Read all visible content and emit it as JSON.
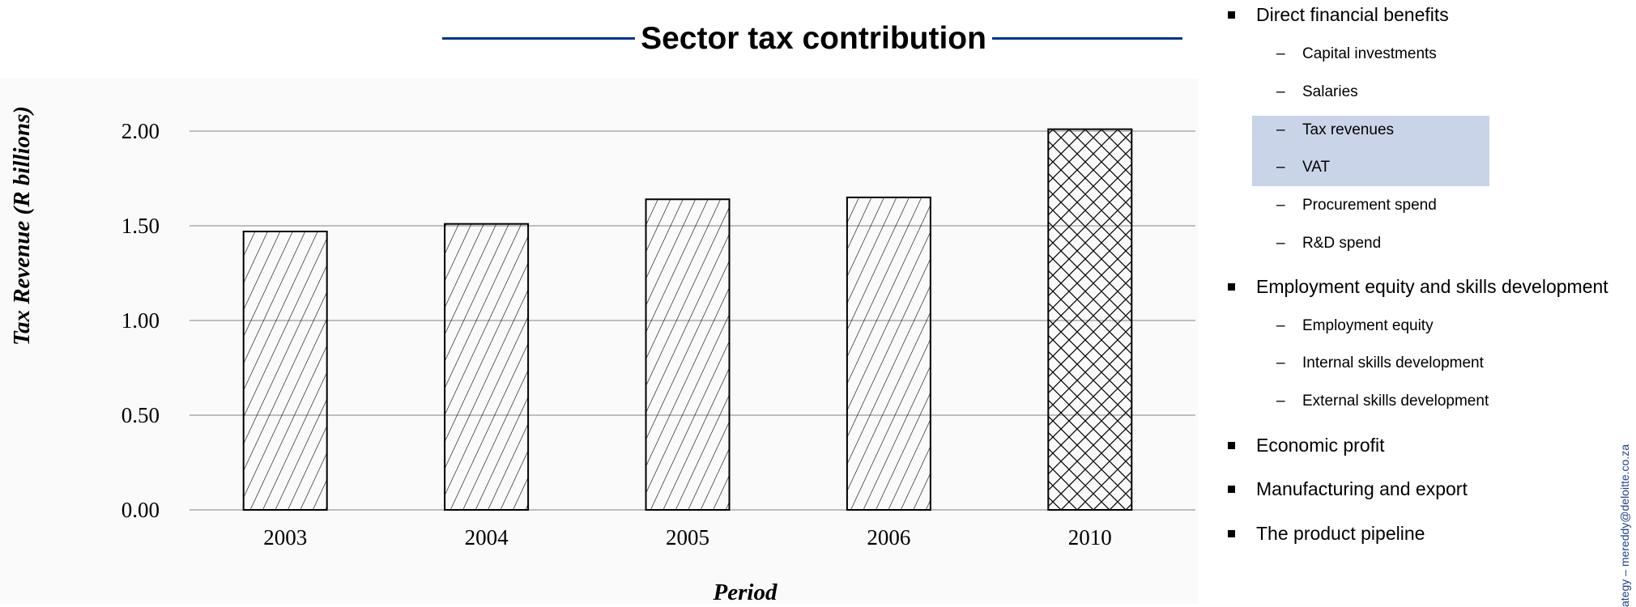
{
  "colors": {
    "title_rule": "#00338d",
    "highlight": "#c9d4e8",
    "plot_bg": "#fafafa",
    "gridline": "#9a9a9a",
    "bar_stroke": "#000000",
    "side_text": "#1e3f8a"
  },
  "chart_data": {
    "type": "bar",
    "title": "Sector tax contribution",
    "xlabel": "Period",
    "ylabel": "Tax Revenue (R billions)",
    "categories": [
      "2003",
      "2004",
      "2005",
      "2006",
      "2010"
    ],
    "values": [
      1.47,
      1.51,
      1.64,
      1.65,
      2.01
    ],
    "patterns": [
      "diagonal-hatch",
      "diagonal-hatch",
      "diagonal-hatch",
      "diagonal-hatch",
      "cross-hatch"
    ],
    "ylim": [
      0,
      2.0
    ],
    "yticks": [
      "0.00",
      "0.50",
      "1.00",
      "1.50",
      "2.00"
    ],
    "grid": true,
    "legend": "none"
  },
  "bullets": [
    {
      "text": "Direct financial benefits",
      "level": 1
    },
    {
      "text": "Capital investments",
      "level": 2
    },
    {
      "text": "Salaries",
      "level": 2
    },
    {
      "text": "Tax revenues",
      "level": 2,
      "highlight": true
    },
    {
      "text": "VAT",
      "level": 2,
      "highlight": true
    },
    {
      "text": "Procurement spend",
      "level": 2
    },
    {
      "text": "R&D spend",
      "level": 2
    },
    {
      "text": "Employment equity and skills development",
      "level": 1
    },
    {
      "text": "Employment equity",
      "level": 2
    },
    {
      "text": "Internal skills development",
      "level": 2
    },
    {
      "text": "External skills development",
      "level": 2
    },
    {
      "text": "Economic profit",
      "level": 1
    },
    {
      "text": "Manufacturing and export",
      "level": 1
    },
    {
      "text": "The product pipeline",
      "level": 1
    }
  ],
  "bullet_markers": {
    "level1": "■",
    "level2": "–"
  },
  "side_text": "ategy – mereddy@deloitte.co.za"
}
